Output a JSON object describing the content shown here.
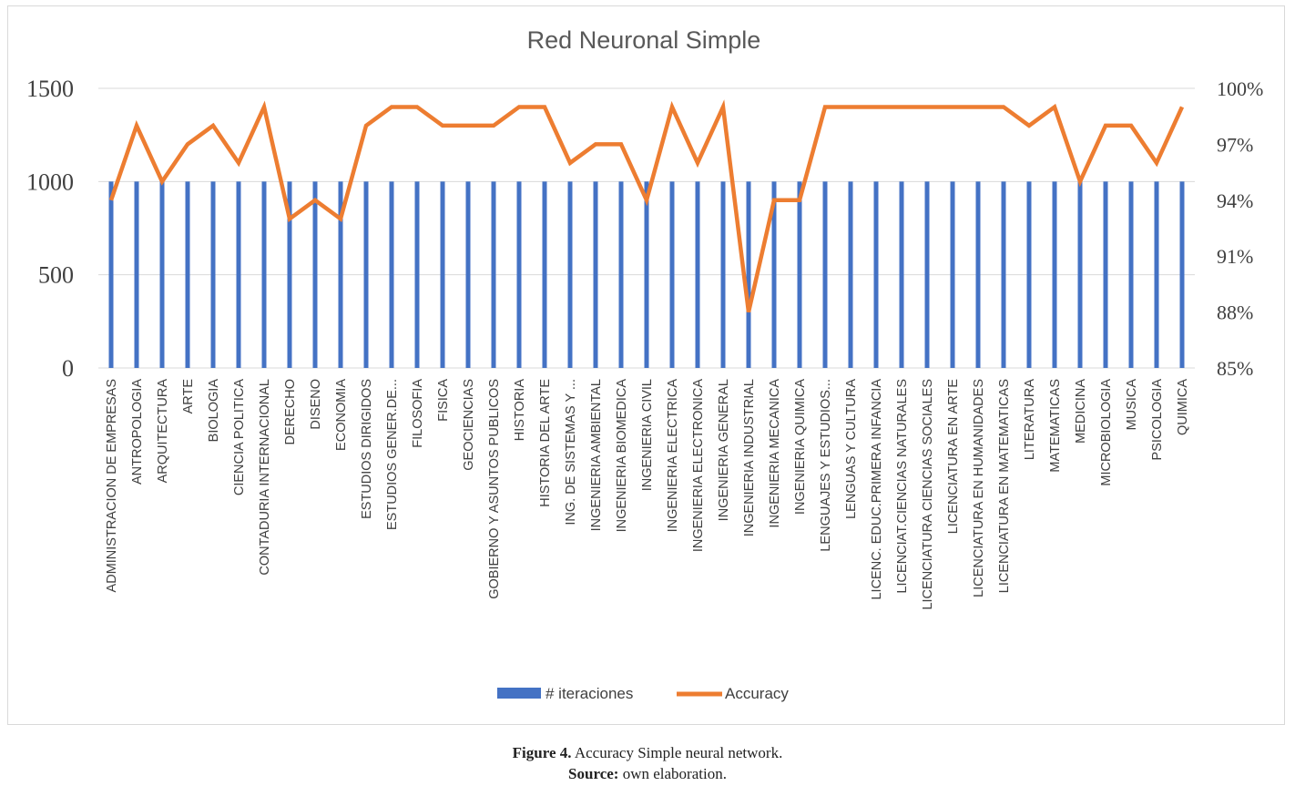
{
  "chart_data": {
    "type": "bar",
    "title": "Red Neuronal Simple",
    "categories": [
      "ADMINISTRACION DE EMPRESAS",
      "ANTROPOLOGIA",
      "ARQUITECTURA",
      "ARTE",
      "BIOLOGIA",
      "CIENCIA POLITICA",
      "CONTADURIA INTERNACIONAL",
      "DERECHO",
      "DISENO",
      "ECONOMIA",
      "ESTUDIOS DIRIGIDOS",
      "ESTUDIOS GENER.DE...",
      "FILOSOFIA",
      "FISICA",
      "GEOCIENCIAS",
      "GOBIERNO Y ASUNTOS PUBLICOS",
      "HISTORIA",
      "HISTORIA DEL ARTE",
      "ING. DE SISTEMAS Y ...",
      "INGENIERIA AMBIENTAL",
      "INGENIERIA BIOMEDICA",
      "INGENIERIA CIVIL",
      "INGENIERIA ELECTRICA",
      "INGENIERIA ELECTRONICA",
      "INGENIERIA GENERAL",
      "INGENIERIA INDUSTRIAL",
      "INGENIERIA MECANICA",
      "INGENIERIA QUIMICA",
      "LENGUAJES Y ESTUDIOS...",
      "LENGUAS Y CULTURA",
      "LICENC. EDUC.PRIMERA INFANCIA",
      "LICENCIAT.CIENCIAS NATURALES",
      "LICENCIATURA CIENCIAS SOCIALES",
      "LICENCIATURA EN ARTE",
      "LICENCIATURA EN HUMANIDADES",
      "LICENCIATURA EN MATEMATICAS",
      "LITERATURA",
      "MATEMATICAS",
      "MEDICINA",
      "MICROBIOLOGIA",
      "MUSICA",
      "PSICOLOGIA",
      "QUIMICA"
    ],
    "series": [
      {
        "name": "# iteraciones",
        "type": "bar",
        "axis": "left",
        "color": "#4472c4",
        "values": [
          1000,
          1000,
          1000,
          1000,
          1000,
          1000,
          1000,
          1000,
          1000,
          1000,
          1000,
          1000,
          1000,
          1000,
          1000,
          1000,
          1000,
          1000,
          1000,
          1000,
          1000,
          1000,
          1000,
          1000,
          1000,
          1000,
          1000,
          1000,
          1000,
          1000,
          1000,
          1000,
          1000,
          1000,
          1000,
          1000,
          1000,
          1000,
          1000,
          1000,
          1000,
          1000,
          1000
        ]
      },
      {
        "name": "Accuracy",
        "type": "line",
        "axis": "right",
        "color": "#ed7d31",
        "values": [
          0.94,
          0.98,
          0.95,
          0.97,
          0.98,
          0.96,
          0.99,
          0.93,
          0.94,
          0.93,
          0.98,
          0.99,
          0.99,
          0.98,
          0.98,
          0.98,
          0.99,
          0.99,
          0.96,
          0.97,
          0.97,
          0.94,
          0.99,
          0.96,
          0.99,
          0.88,
          0.94,
          0.94,
          0.99,
          0.99,
          0.99,
          0.99,
          0.99,
          0.99,
          0.99,
          0.99,
          0.98,
          0.99,
          0.95,
          0.98,
          0.98,
          0.96,
          0.99
        ]
      }
    ],
    "y_left": {
      "ylim": [
        0,
        1500
      ],
      "ticks": [
        "0",
        "500",
        "1000",
        "1500"
      ]
    },
    "y_right": {
      "ylim": [
        0.85,
        1.0
      ],
      "ticks": [
        "85%",
        "88%",
        "91%",
        "94%",
        "97%",
        "100%"
      ]
    },
    "grid": true,
    "legend": "bottom"
  },
  "caption": {
    "figure_label": "Figure 4.",
    "figure_text": " Accuracy Simple neural network.",
    "source_label": "Source:",
    "source_text": " own elaboration."
  }
}
